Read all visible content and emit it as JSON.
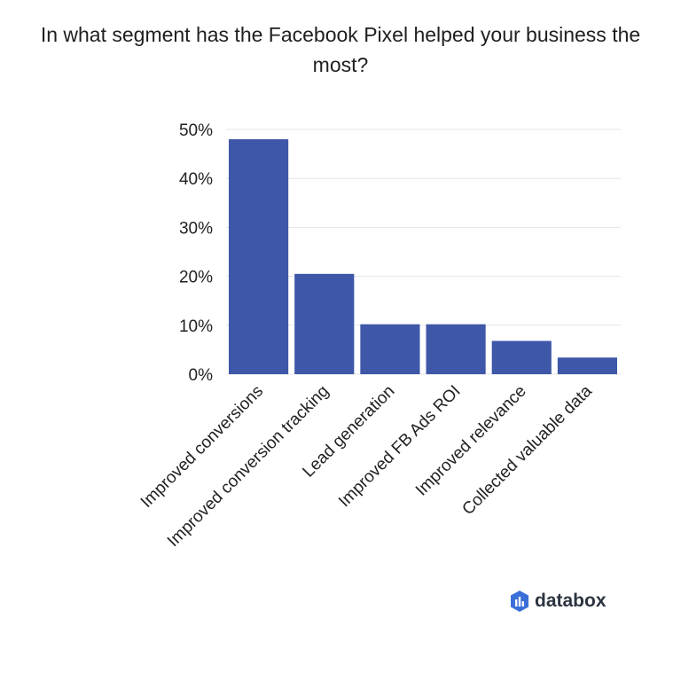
{
  "chart_data": {
    "type": "bar",
    "title": "In what segment has the Facebook Pixel helped your business the most?",
    "xlabel": "",
    "ylabel": "",
    "categories": [
      "Improved conversions",
      "Improved conversion tracking",
      "Lead generation",
      "Improved FB Ads ROI",
      "Improved relevance",
      "Collected valuable data"
    ],
    "values": [
      48,
      20.5,
      10.2,
      10.2,
      6.8,
      3.4
    ],
    "ylim": [
      0,
      50
    ],
    "yticks": [
      "0%",
      "10%",
      "20%",
      "30%",
      "40%",
      "50%"
    ],
    "grid": true,
    "colors": {
      "bar": "#3f57a8"
    }
  },
  "brand": {
    "name": "databox",
    "icon": "databox-logo-icon",
    "color": "#3a6fd8"
  }
}
